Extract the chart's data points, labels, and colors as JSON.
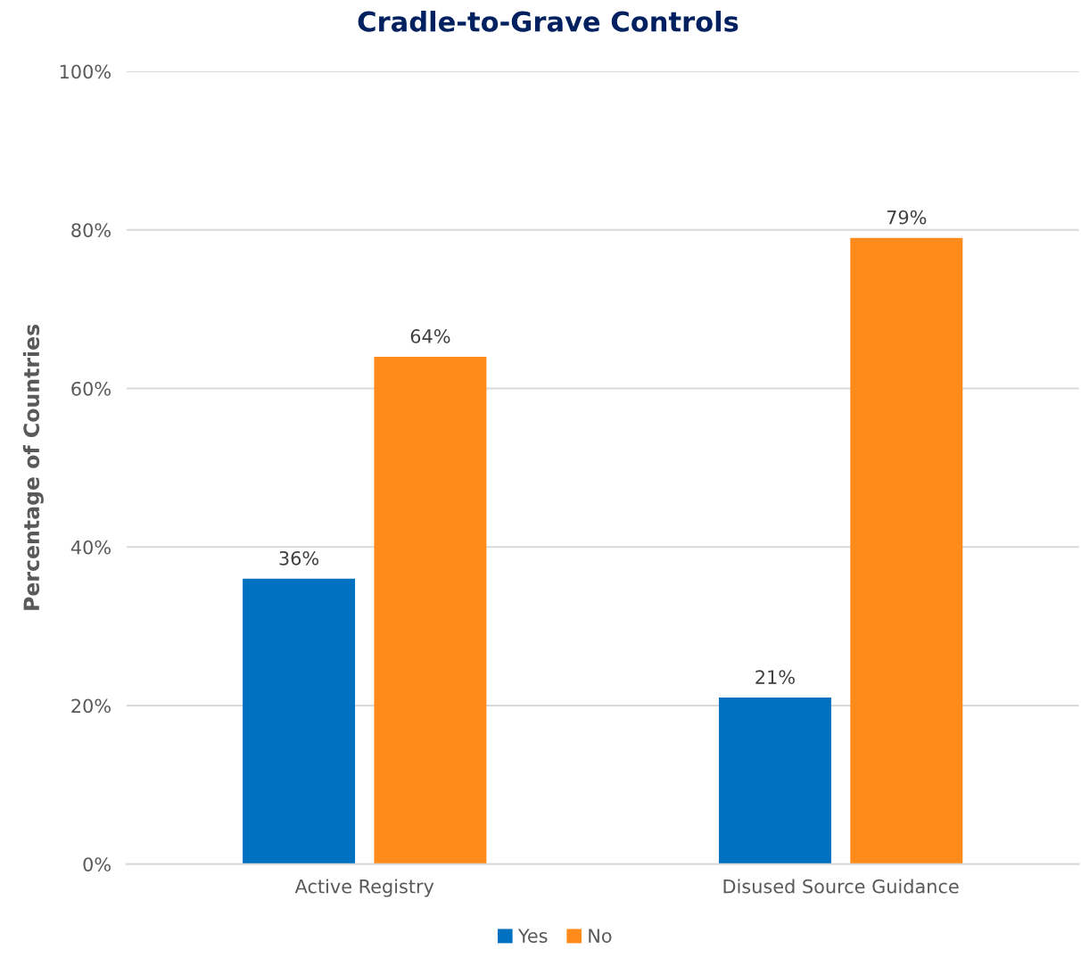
{
  "chart_data": {
    "type": "bar",
    "title": "Cradle-to-Grave Controls",
    "ylabel": "Percentage of Countries",
    "categories": [
      "Active Registry",
      "Disused Source Guidance"
    ],
    "series": [
      {
        "name": "Yes",
        "color": "#0070c0",
        "values": [
          36,
          21
        ],
        "value_labels": [
          "36%",
          "21%"
        ]
      },
      {
        "name": "No",
        "color": "#ff8c1a",
        "values": [
          64,
          79
        ],
        "value_labels": [
          "64%",
          "79%"
        ]
      }
    ],
    "ylim": [
      0,
      100
    ],
    "yticks": [
      {
        "value": 0,
        "label": "0%"
      },
      {
        "value": 20,
        "label": "20%"
      },
      {
        "value": 40,
        "label": "40%"
      },
      {
        "value": 60,
        "label": "60%"
      },
      {
        "value": 80,
        "label": "80%"
      },
      {
        "value": 100,
        "label": "100%"
      }
    ],
    "grid": "y",
    "legend": "bottom"
  }
}
